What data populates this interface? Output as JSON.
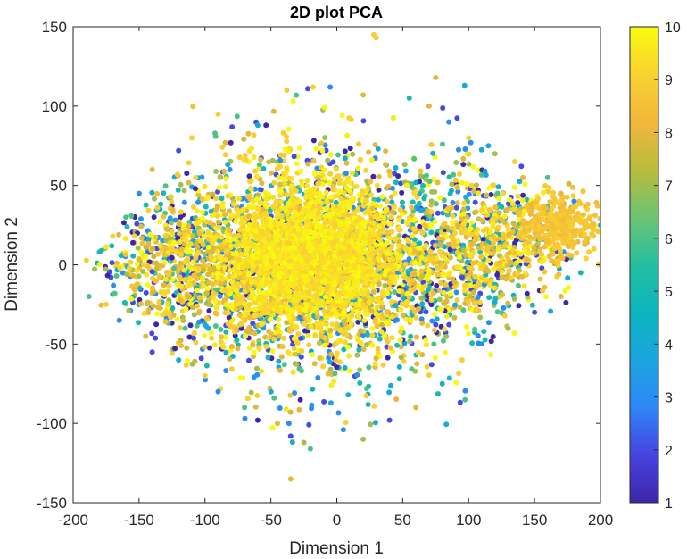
{
  "chart_data": {
    "type": "scatter",
    "title": "2D plot PCA",
    "xlabel": "Dimension 1",
    "ylabel": "Dimension 2",
    "xlim": [
      -200,
      200
    ],
    "ylim": [
      -150,
      150
    ],
    "x_ticks": [
      -200,
      -150,
      -100,
      -50,
      0,
      50,
      100,
      150,
      200
    ],
    "y_ticks": [
      -150,
      -100,
      -50,
      0,
      50,
      100,
      150
    ],
    "x_tick_labels": [
      "-200",
      "-150",
      "-100",
      "-50",
      "0",
      "50",
      "100",
      "150",
      "200"
    ],
    "y_tick_labels": [
      "-150",
      "-100",
      "-50",
      "0",
      "50",
      "100",
      "150"
    ],
    "grid": false,
    "colorbar": {
      "range": [
        1,
        10
      ],
      "ticks": [
        1,
        2,
        3,
        4,
        5,
        6,
        7,
        8,
        9,
        10
      ],
      "tick_labels": [
        "1",
        "2",
        "3",
        "4",
        "5",
        "6",
        "7",
        "8",
        "9",
        "10"
      ],
      "colormap": "parula",
      "colormap_stops": [
        "#3e26a8",
        "#4743e0",
        "#2e87f7",
        "#1ca4df",
        "#0cb5bf",
        "#25bfa0",
        "#6cc472",
        "#b9bc3c",
        "#f2b73c",
        "#f9d22f",
        "#f9fb0e"
      ]
    },
    "point_color_value_range": [
      1,
      10
    ],
    "series": [
      {
        "points": [
          [
            28,
            145,
            9
          ],
          [
            30,
            143,
            9
          ],
          [
            75,
            118,
            8
          ],
          [
            97,
            113,
            4
          ],
          [
            -22,
            111,
            2
          ],
          [
            -18,
            112,
            9
          ],
          [
            -38,
            110,
            9
          ],
          [
            20,
            107,
            8
          ],
          [
            -5,
            112,
            3
          ],
          [
            -90,
            95,
            9
          ],
          [
            -60,
            88,
            4
          ],
          [
            -110,
            80,
            9
          ],
          [
            -120,
            72,
            2
          ],
          [
            -140,
            60,
            8
          ],
          [
            -150,
            45,
            3
          ],
          [
            -160,
            30,
            6
          ],
          [
            -170,
            18,
            9
          ],
          [
            -180,
            8,
            5
          ],
          [
            -188,
            -20,
            6
          ],
          [
            -175,
            -25,
            9
          ],
          [
            -165,
            -35,
            3
          ],
          [
            -145,
            -45,
            8
          ],
          [
            -140,
            -55,
            2
          ],
          [
            -120,
            -60,
            4
          ],
          [
            -100,
            -70,
            9
          ],
          [
            -90,
            -80,
            3
          ],
          [
            -70,
            -90,
            6
          ],
          [
            -60,
            -98,
            1
          ],
          [
            -45,
            -100,
            8
          ],
          [
            -35,
            -108,
            2
          ],
          [
            -25,
            -112,
            7
          ],
          [
            -20,
            -116,
            6
          ],
          [
            -35,
            -135,
            8
          ],
          [
            5,
            -104,
            3
          ],
          [
            20,
            -110,
            7
          ],
          [
            40,
            -98,
            2
          ],
          [
            60,
            -90,
            8
          ],
          [
            80,
            -75,
            4
          ],
          [
            95,
            -60,
            9
          ],
          [
            110,
            -50,
            3
          ],
          [
            130,
            -40,
            7
          ],
          [
            150,
            -30,
            2
          ],
          [
            170,
            -20,
            8
          ],
          [
            185,
            -5,
            5
          ],
          [
            195,
            10,
            9
          ],
          [
            200,
            25,
            4
          ],
          [
            190,
            35,
            9
          ],
          [
            180,
            40,
            3
          ],
          [
            170,
            45,
            8
          ],
          [
            160,
            55,
            6
          ],
          [
            140,
            62,
            2
          ],
          [
            120,
            70,
            7
          ],
          [
            100,
            80,
            9
          ],
          [
            85,
            90,
            3
          ],
          [
            70,
            100,
            8
          ],
          [
            55,
            105,
            5
          ],
          [
            135,
            65,
            9
          ],
          [
            115,
            75,
            4
          ],
          [
            -130,
            -30,
            9
          ],
          [
            -115,
            -40,
            6
          ]
        ]
      }
    ]
  }
}
